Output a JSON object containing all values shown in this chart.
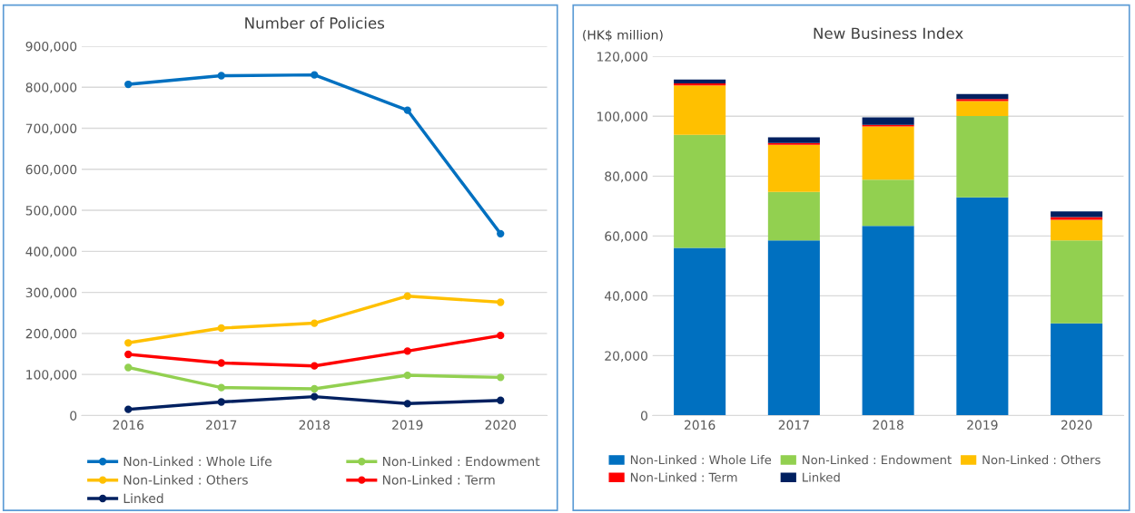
{
  "chart_data": [
    {
      "type": "line",
      "title": "Number of Policies",
      "categories": [
        "2016",
        "2017",
        "2018",
        "2019",
        "2020"
      ],
      "ylim": [
        0,
        900000
      ],
      "yticks": [
        {
          "value": 0,
          "label": "0"
        },
        {
          "value": 100000,
          "label": "100,000"
        },
        {
          "value": 200000,
          "label": "200,000"
        },
        {
          "value": 300000,
          "label": "300,000"
        },
        {
          "value": 400000,
          "label": "400,000"
        },
        {
          "value": 500000,
          "label": "500,000"
        },
        {
          "value": 600000,
          "label": "600,000"
        },
        {
          "value": 700000,
          "label": "700,000"
        },
        {
          "value": 800000,
          "label": "800,000"
        },
        {
          "value": 900000,
          "label": "900,000"
        }
      ],
      "grid": "y",
      "legend": "bottom",
      "marker": "circle",
      "line_style": "solid",
      "series": [
        {
          "name": "Non-Linked : Whole Life",
          "color": "#0070c0",
          "values": [
            807000,
            828000,
            830000,
            744000,
            443000
          ]
        },
        {
          "name": "Non-Linked : Endowment",
          "color": "#92d050",
          "values": [
            117000,
            68000,
            65000,
            98000,
            93000
          ]
        },
        {
          "name": "Non-Linked : Others",
          "color": "#ffc000",
          "values": [
            177000,
            213000,
            225000,
            291000,
            276000
          ]
        },
        {
          "name": "Non-Linked : Term",
          "color": "#ff0000",
          "values": [
            149000,
            128000,
            121000,
            157000,
            195000
          ]
        },
        {
          "name": "Linked",
          "color": "#002060",
          "values": [
            15000,
            33000,
            46000,
            29000,
            37000
          ]
        }
      ]
    },
    {
      "type": "bar",
      "stacked": true,
      "title": "New Business Index",
      "ylabel": "(HK$ million)",
      "categories": [
        "2016",
        "2017",
        "2018",
        "2019",
        "2020"
      ],
      "ylim": [
        0,
        120000
      ],
      "yticks": [
        {
          "value": 0,
          "label": "0"
        },
        {
          "value": 20000,
          "label": "20,000"
        },
        {
          "value": 40000,
          "label": "40,000"
        },
        {
          "value": 60000,
          "label": "60,000"
        },
        {
          "value": 80000,
          "label": "80,000"
        },
        {
          "value": 100000,
          "label": "100,000"
        },
        {
          "value": 120000,
          "label": "120,000"
        }
      ],
      "grid": "y",
      "legend": "bottom",
      "series": [
        {
          "name": "Non-Linked : Whole Life",
          "color": "#0070c0",
          "values": [
            56000,
            58500,
            63400,
            72900,
            30800
          ]
        },
        {
          "name": "Non-Linked : Endowment",
          "color": "#92d050",
          "values": [
            37800,
            16200,
            15400,
            27200,
            27700
          ]
        },
        {
          "name": "Non-Linked : Others",
          "color": "#ffc000",
          "values": [
            16500,
            15800,
            17800,
            5000,
            6900
          ]
        },
        {
          "name": "Non-Linked : Term",
          "color": "#ff0000",
          "values": [
            700,
            600,
            500,
            700,
            900
          ]
        },
        {
          "name": "Linked",
          "color": "#002060",
          "values": [
            1300,
            1900,
            2500,
            1600,
            1900
          ]
        }
      ]
    }
  ]
}
